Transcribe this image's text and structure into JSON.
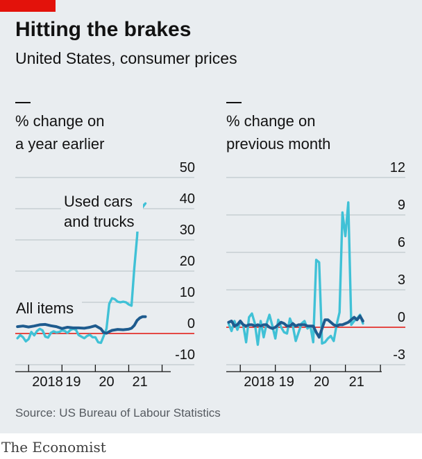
{
  "header": {
    "title": "Hitting the brakes",
    "subtitle": "United States, consumer prices"
  },
  "source": "Source: US Bureau of Labour Statistics",
  "brand": "The Economist",
  "colors": {
    "accent": "#e3120b",
    "background": "#e9edf0",
    "all_items": "#1e5b8e",
    "used_cars": "#40c1d6",
    "grid": "#b5bec5",
    "zero_line": "#e3120b"
  },
  "chart_data": [
    {
      "type": "line",
      "title": "% change on a year earlier",
      "title_lines": [
        "% change on",
        "a year earlier"
      ],
      "ylim": [
        -10,
        50
      ],
      "yticks": [
        -10,
        0,
        10,
        20,
        30,
        40,
        50
      ],
      "ytick_labels": [
        "-10",
        "0",
        "10",
        "20",
        "30",
        "40",
        "50"
      ],
      "xlim": [
        2017.6,
        2021.76
      ],
      "xticks": [
        2018,
        2019,
        2020,
        2021
      ],
      "xtick_labels": [
        "2018",
        "19",
        "20",
        "21"
      ],
      "grid": true,
      "series": [
        {
          "name": "All items",
          "label": "All items",
          "color": "all_items",
          "x": [
            2017.667,
            2017.833,
            2018.0,
            2018.167,
            2018.333,
            2018.5,
            2018.667,
            2018.833,
            2019.0,
            2019.167,
            2019.333,
            2019.5,
            2019.667,
            2019.833,
            2020.0,
            2020.167,
            2020.25,
            2020.333,
            2020.417,
            2020.5,
            2020.667,
            2020.833,
            2021.0,
            2021.083,
            2021.167,
            2021.25,
            2021.333,
            2021.417,
            2021.5
          ],
          "values": [
            2.2,
            2.4,
            2.1,
            2.4,
            2.8,
            2.9,
            2.5,
            2.2,
            1.6,
            2.0,
            1.8,
            1.8,
            1.7,
            2.0,
            2.5,
            1.5,
            0.3,
            0.1,
            0.6,
            1.0,
            1.3,
            1.2,
            1.4,
            1.7,
            2.6,
            4.2,
            5.0,
            5.4,
            5.4
          ]
        },
        {
          "name": "Used cars and trucks",
          "label_lines": [
            "Used cars",
            "and trucks"
          ],
          "color": "used_cars",
          "x": [
            2017.667,
            2017.75,
            2017.833,
            2017.917,
            2018.0,
            2018.083,
            2018.167,
            2018.25,
            2018.333,
            2018.417,
            2018.5,
            2018.583,
            2018.667,
            2018.75,
            2018.833,
            2018.917,
            2019.0,
            2019.083,
            2019.167,
            2019.25,
            2019.333,
            2019.417,
            2019.5,
            2019.583,
            2019.667,
            2019.75,
            2019.833,
            2019.917,
            2020.0,
            2020.083,
            2020.167,
            2020.25,
            2020.333,
            2020.417,
            2020.5,
            2020.583,
            2020.667,
            2020.75,
            2020.833,
            2020.917,
            2021.0,
            2021.083,
            2021.167,
            2021.25,
            2021.333,
            2021.417,
            2021.5
          ],
          "values": [
            -1.5,
            -0.5,
            -1.2,
            -2.5,
            -1.8,
            0.5,
            -0.6,
            0.8,
            1.5,
            1.0,
            -1.0,
            -1.3,
            0.2,
            0.7,
            0.3,
            0.5,
            1.0,
            0.8,
            0.2,
            1.1,
            1.5,
            1.2,
            -0.5,
            -1.0,
            -1.5,
            -0.8,
            -0.4,
            -1.2,
            -1.2,
            -2.8,
            -3.0,
            -0.8,
            1.5,
            9.5,
            11.3,
            11.0,
            10.2,
            10.0,
            10.2,
            10.0,
            9.3,
            8.9,
            21.0,
            31.0,
            45.2,
            40.5,
            41.7
          ]
        }
      ],
      "annotations": [
        {
          "text_lines": [
            "Used cars",
            "and trucks"
          ],
          "series": "Used cars and trucks"
        },
        {
          "text_lines": [
            "All items"
          ],
          "series": "All items"
        }
      ]
    },
    {
      "type": "line",
      "title": "% change on previous month",
      "title_lines": [
        "% change on",
        "previous month"
      ],
      "ylim": [
        -3,
        12
      ],
      "yticks": [
        -3,
        0,
        3,
        6,
        9,
        12
      ],
      "ytick_labels": [
        "-3",
        "0",
        "3",
        "6",
        "9",
        "12"
      ],
      "xlim": [
        2017.6,
        2021.76
      ],
      "xticks": [
        2018,
        2019,
        2020,
        2021
      ],
      "xtick_labels": [
        "2018",
        "19",
        "20",
        "21"
      ],
      "grid": true,
      "series": [
        {
          "name": "All items",
          "color": "all_items",
          "x": [
            2017.667,
            2017.75,
            2017.833,
            2017.917,
            2018.0,
            2018.083,
            2018.167,
            2018.25,
            2018.333,
            2018.417,
            2018.5,
            2018.583,
            2018.667,
            2018.75,
            2018.833,
            2018.917,
            2019.0,
            2019.083,
            2019.167,
            2019.25,
            2019.333,
            2019.417,
            2019.5,
            2019.583,
            2019.667,
            2019.75,
            2019.833,
            2019.917,
            2020.0,
            2020.083,
            2020.167,
            2020.25,
            2020.333,
            2020.417,
            2020.5,
            2020.583,
            2020.667,
            2020.75,
            2020.833,
            2020.917,
            2021.0,
            2021.083,
            2021.167,
            2021.25,
            2021.333,
            2021.417,
            2021.5
          ],
          "values": [
            0.4,
            0.5,
            0.1,
            0.2,
            0.5,
            0.2,
            0.1,
            0.2,
            0.2,
            0.1,
            0.2,
            0.1,
            0.2,
            0.2,
            0.0,
            -0.1,
            0.0,
            0.2,
            0.4,
            0.3,
            0.1,
            0.1,
            0.3,
            0.1,
            0.2,
            0.2,
            0.2,
            0.1,
            0.1,
            0.1,
            -0.4,
            -0.8,
            -0.1,
            0.6,
            0.6,
            0.4,
            0.2,
            0.1,
            0.2,
            0.2,
            0.3,
            0.4,
            0.6,
            0.8,
            0.6,
            0.9,
            0.5
          ]
        },
        {
          "name": "Used cars and trucks",
          "color": "used_cars",
          "x": [
            2017.667,
            2017.75,
            2017.833,
            2017.917,
            2018.0,
            2018.083,
            2018.167,
            2018.25,
            2018.333,
            2018.417,
            2018.5,
            2018.583,
            2018.667,
            2018.75,
            2018.833,
            2018.917,
            2019.0,
            2019.083,
            2019.167,
            2019.25,
            2019.333,
            2019.417,
            2019.5,
            2019.583,
            2019.667,
            2019.75,
            2019.833,
            2019.917,
            2020.0,
            2020.083,
            2020.167,
            2020.25,
            2020.333,
            2020.417,
            2020.5,
            2020.583,
            2020.667,
            2020.75,
            2020.833,
            2020.917,
            2021.0,
            2021.083,
            2021.167,
            2021.25,
            2021.333,
            2021.417,
            2021.5
          ],
          "values": [
            0.3,
            -0.3,
            0.5,
            -0.2,
            0.4,
            0.2,
            -1.2,
            0.8,
            1.1,
            0.3,
            -1.4,
            0.5,
            -0.8,
            0.3,
            1.0,
            0.1,
            -0.9,
            0.6,
            0.0,
            -0.4,
            -0.5,
            0.7,
            0.1,
            -1.1,
            -0.4,
            0.3,
            0.5,
            -0.1,
            0.1,
            -1.2,
            5.4,
            5.2,
            -1.3,
            -1.2,
            -0.9,
            -0.7,
            -1.1,
            0.2,
            1.2,
            9.2,
            7.3,
            10.0,
            0.2,
            0.5,
            0.7,
            1.0,
            0.3
          ]
        }
      ]
    }
  ]
}
